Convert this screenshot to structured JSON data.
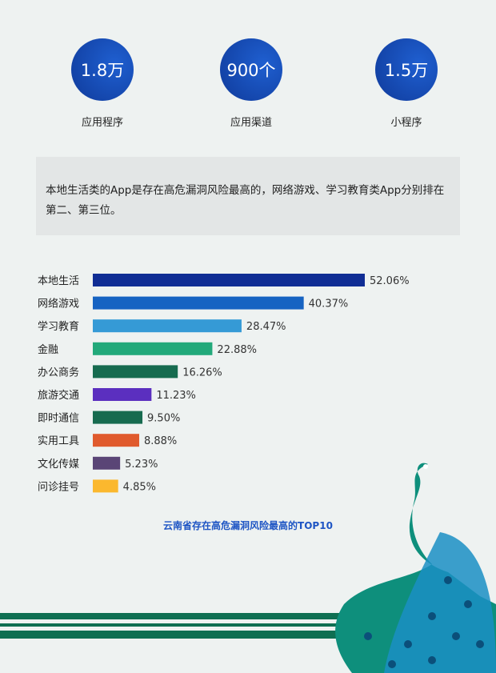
{
  "stats": [
    {
      "value": "1.8万",
      "label": "应用程序"
    },
    {
      "value": "900个",
      "label": "应用渠道"
    },
    {
      "value": "1.5万",
      "label": "小程序"
    }
  ],
  "note": "本地生活类的App是存在高危漏洞风险最高的，网络游戏、学习教育类App分别排在第二、第三位。",
  "chart_data": {
    "type": "bar",
    "orientation": "horizontal",
    "title": "云南省存在高危漏洞风险最高的TOP10",
    "categories": [
      "本地生活",
      "网络游戏",
      "学习教育",
      "金融",
      "办公商务",
      "旅游交通",
      "即时通信",
      "实用工具",
      "文化传媒",
      "问诊挂号"
    ],
    "values": [
      52.06,
      40.37,
      28.47,
      22.88,
      16.26,
      11.23,
      9.5,
      8.88,
      5.23,
      4.85
    ],
    "value_labels": [
      "52.06%",
      "40.37%",
      "28.47%",
      "22.88%",
      "16.26%",
      "11.23%",
      "9.50%",
      "8.88%",
      "5.23%",
      "4.85%"
    ],
    "colors": [
      "#102d94",
      "#1663c2",
      "#359ad6",
      "#22a97a",
      "#166b4f",
      "#5b2fbf",
      "#176b4f",
      "#e05a2d",
      "#5a4576",
      "#fbb82e"
    ],
    "unit": "%",
    "grid": false,
    "legend": "none"
  }
}
